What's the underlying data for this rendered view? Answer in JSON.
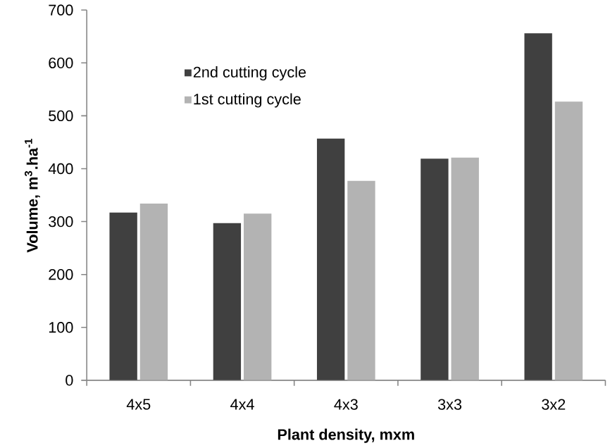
{
  "chart_data": {
    "type": "bar",
    "xlabel": "Plant density, mxm",
    "ylabel": "Volume, m$^{3}$.ha$^{-1}$",
    "categories": [
      "4x5",
      "4x4",
      "4x3",
      "3x3",
      "3x2"
    ],
    "series": [
      {
        "name": "2nd cutting cycle",
        "color": "#404040",
        "values": [
          317,
          297,
          457,
          419,
          656
        ]
      },
      {
        "name": "1st cutting cycle",
        "color": "#b3b3b3",
        "values": [
          334,
          315,
          377,
          421,
          527
        ]
      }
    ],
    "ylim": [
      0,
      700
    ],
    "yticks": [
      0,
      100,
      200,
      300,
      400,
      500,
      600,
      700
    ],
    "legend": "top left"
  }
}
